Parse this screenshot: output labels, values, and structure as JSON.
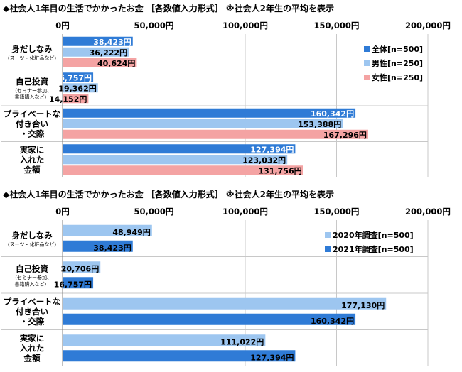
{
  "chart_data": [
    {
      "type": "bar",
      "orientation": "horizontal",
      "title": "◆社会人1年目の生活でかかったお金 ［各数値入力形式］ ※社会人2年生の平均を表示",
      "categories": [
        {
          "lines": [
            "身だしなみ"
          ],
          "sub": [
            "（スーツ・化粧品など）"
          ]
        },
        {
          "lines": [
            "自己投資"
          ],
          "sub": [
            "（セミナー参加、",
            "書籍購入など）"
          ]
        },
        {
          "lines": [
            "プライベートな",
            "付き合い",
            "・交際"
          ],
          "sub": []
        },
        {
          "lines": [
            "実家に",
            "入れた",
            "金額"
          ],
          "sub": []
        }
      ],
      "series": [
        {
          "name": "全体[n=500]",
          "color": "#2f7bd6",
          "values": [
            38423,
            16757,
            160342,
            127394
          ],
          "labels": [
            "38,423円",
            "16,757円",
            "160,342円",
            "127,394円"
          ],
          "label_color": "#ffffff"
        },
        {
          "name": "男性[n=250]",
          "color": "#9dc6f0",
          "values": [
            36222,
            19362,
            153388,
            123032
          ],
          "labels": [
            "36,222円",
            "19,362円",
            "153,388円",
            "123,032円"
          ],
          "label_color": "#000000"
        },
        {
          "name": "女性[n=250]",
          "color": "#f4a3a3",
          "values": [
            40624,
            14152,
            167296,
            131756
          ],
          "labels": [
            "40,624円",
            "14,152円",
            "167,296円",
            "131,756円"
          ],
          "label_color": "#000000"
        }
      ],
      "xlim": [
        0,
        200000
      ],
      "ticks": [
        0,
        50000,
        100000,
        150000,
        200000
      ],
      "tick_labels": [
        "0円",
        "50,000円",
        "100,000円",
        "150,000円",
        "200,000円"
      ],
      "legend": "top-right"
    },
    {
      "type": "bar",
      "orientation": "horizontal",
      "title": "◆社会人1年目の生活でかかったお金 ［各数値入力形式］ ※社会人2年生の平均を表示",
      "categories": [
        {
          "lines": [
            "身だしなみ"
          ],
          "sub": [
            "（スーツ・化粧品など）"
          ]
        },
        {
          "lines": [
            "自己投資"
          ],
          "sub": [
            "（セミナー参加、",
            "書籍購入など）"
          ]
        },
        {
          "lines": [
            "プライベートな",
            "付き合い",
            "・交際"
          ],
          "sub": []
        },
        {
          "lines": [
            "実家に",
            "入れた",
            "金額"
          ],
          "sub": []
        }
      ],
      "series": [
        {
          "name": "2020年調査[n=500]",
          "color": "#9dc6f0",
          "values": [
            48949,
            20706,
            177130,
            111022
          ],
          "labels": [
            "48,949円",
            "20,706円",
            "177,130円",
            "111,022円"
          ],
          "label_color": "#000000"
        },
        {
          "name": "2021年調査[n=500]",
          "color": "#2f7bd6",
          "values": [
            38423,
            16757,
            160342,
            127394
          ],
          "labels": [
            "38,423円",
            "16,757円",
            "160,342円",
            "127,394円"
          ],
          "label_color": "#000000"
        }
      ],
      "xlim": [
        0,
        200000
      ],
      "ticks": [
        0,
        50000,
        100000,
        150000,
        200000
      ],
      "tick_labels": [
        "0円",
        "50,000円",
        "100,000円",
        "150,000円",
        "200,000円"
      ],
      "legend": "top-right"
    }
  ]
}
